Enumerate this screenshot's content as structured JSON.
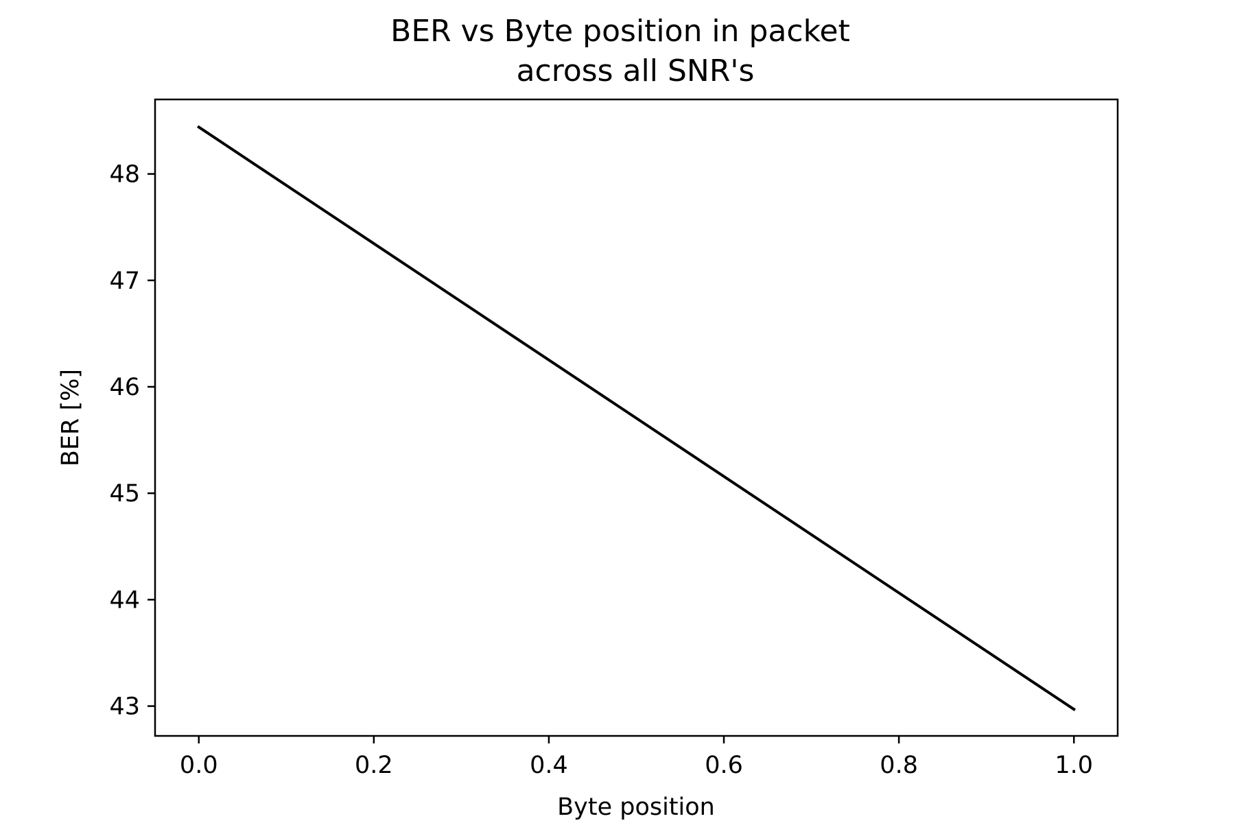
{
  "chart_data": {
    "type": "line",
    "title": "BER vs Byte position in packet",
    "subtitle": "across all SNR's",
    "xlabel": "Byte position",
    "ylabel": "BER [%]",
    "xlim": [
      -0.05,
      1.05
    ],
    "ylim": [
      42.72,
      48.7
    ],
    "x_ticks": [
      0.0,
      0.2,
      0.4,
      0.6,
      0.8,
      1.0
    ],
    "x_tick_labels": [
      "0.0",
      "0.2",
      "0.4",
      "0.6",
      "0.8",
      "1.0"
    ],
    "y_ticks": [
      43,
      44,
      45,
      46,
      47,
      48
    ],
    "y_tick_labels": [
      "43",
      "44",
      "45",
      "46",
      "47",
      "48"
    ],
    "grid": false,
    "legend": "none",
    "series": [
      {
        "color": "#000000",
        "x": [
          0.0,
          1.0
        ],
        "y": [
          48.44,
          42.97
        ]
      }
    ]
  }
}
